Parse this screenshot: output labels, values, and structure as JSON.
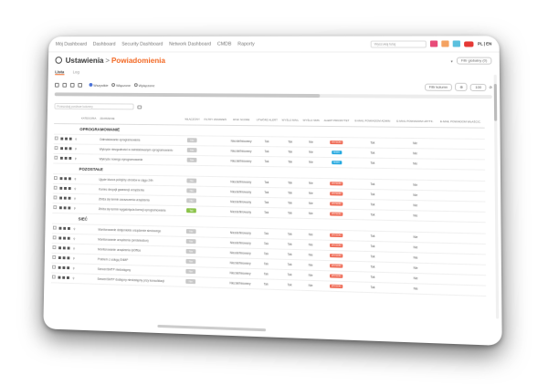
{
  "nav": [
    "Mój Dashboard",
    "Dashboard",
    "Security Dashboard",
    "Network Dashboard",
    "CMDB",
    "Raporty"
  ],
  "search_placeholder": "Wyszukaj tutaj",
  "lang": "PL | EN",
  "title": {
    "part1": "Ustawienia",
    "separator": ">",
    "part2": "Powiadomienia"
  },
  "filter_global": "Filtr globalny (0)",
  "tabs": [
    {
      "label": "Lista",
      "active": true
    },
    {
      "label": "Log",
      "active": false
    }
  ],
  "radios": [
    {
      "label": "Wszystkie",
      "on": true
    },
    {
      "label": "Włączone",
      "on": false
    },
    {
      "label": "Wyłączone",
      "on": false
    }
  ],
  "toolbar_right": {
    "button": "Filtr kolumn",
    "page_size": "100"
  },
  "filter_placeholder": "Przeszukaj poniższe kolumny",
  "columns": [
    "KATEGORIA",
    "ZDARZENIE",
    "WŁĄCZONY",
    "FILTRY ZDARZEŃ",
    "RISK SCORE",
    "UTWÓRZ ALERT",
    "WYŚLIJ MAIL",
    "WYŚLIJ SMS",
    "ALERT PRIORYTET",
    "E-MAIL POWIADOM ADMIN",
    "E-MAIL POWIADOM UŻYTK.",
    "E-MAIL POWIADOM WŁAŚCIC."
  ],
  "groups": [
    {
      "name": "OPROGRAMOWANIE",
      "rows": [
        {
          "name": "Odinstalowanie oprogramowania",
          "enabled": "Nie",
          "risk": "Niezdefiniowany",
          "alert": "Tak",
          "mail": "Tak",
          "sms": "Nie",
          "prio": "WYSOKI",
          "prio_color": "red",
          "admin": "Tak",
          "user": "Nie"
        },
        {
          "name": "Wykrycie niezgodności w zainstalowanym oprogramowaniu",
          "enabled": "Nie",
          "risk": "Niezdefiniowany",
          "alert": "Tak",
          "mail": "Tak",
          "sms": "Nie",
          "prio": "NISKI",
          "prio_color": "blue",
          "admin": "Tak",
          "user": "Nie"
        },
        {
          "name": "Wykrycie nowego oprogramowania",
          "enabled": "Nie",
          "risk": "Niezdefiniowany",
          "alert": "Tak",
          "mail": "Tak",
          "sms": "Nie",
          "prio": "NISKI",
          "prio_color": "blue",
          "admin": "Tak",
          "user": "Nie"
        }
      ]
    },
    {
      "name": "POZOSTAŁE",
      "rows": [
        {
          "name": "Ujęcie klucza policji/zy obrotów w ciągu 24h",
          "enabled": "Nie",
          "risk": "Niezdefiniowany",
          "alert": "Tak",
          "mail": "Tak",
          "sms": "Nie",
          "prio": "WYSOKI",
          "prio_color": "red",
          "admin": "Tak",
          "user": "Nie"
        },
        {
          "name": "Koniec decyzjii gwarancji urządzenia",
          "enabled": "Nie",
          "risk": "Niezdefiniowany",
          "alert": "Tak",
          "mail": "Tak",
          "sms": "Nie",
          "prio": "WYSOKI",
          "prio_color": "red",
          "admin": "Tak",
          "user": "Nie"
        },
        {
          "name": "Zbliża się termin zaoszczenia urządzenia",
          "enabled": "Nie",
          "risk": "Niezdefiniowany",
          "alert": "Tak",
          "mail": "Tak",
          "sms": "Nie",
          "prio": "WYSOKI",
          "prio_color": "red",
          "admin": "Tak",
          "user": "Nie"
        },
        {
          "name": "Zbliża się termin wygaśnięcia licencji oprogramowania",
          "enabled": "Tak",
          "risk": "Niezdefiniowany",
          "alert": "Tak",
          "mail": "Tak",
          "sms": "Nie",
          "prio": "WYSOKI",
          "prio_color": "red",
          "admin": "Tak",
          "user": "Nie"
        }
      ]
    },
    {
      "name": "SIEĆ",
      "rows": [
        {
          "name": "Monitorowanie dziejeniekte urządzenie sieciowego",
          "enabled": "Nie",
          "risk": "Niezdefiniowany",
          "alert": "Tak",
          "mail": "Tak",
          "sms": "Nie",
          "prio": "WYSOKI",
          "prio_color": "red",
          "admin": "Tak",
          "user": "Nie"
        },
        {
          "name": "Monitorowanie urządzenia (on/detection)",
          "enabled": "Nie",
          "risk": "Niezdefiniowany",
          "alert": "Tak",
          "mail": "Tak",
          "sms": "Nie",
          "prio": "WYSOKI",
          "prio_color": "red",
          "admin": "Tak",
          "user": "Nie"
        },
        {
          "name": "Monitorowanie urządzenia IpOffice",
          "enabled": "Nie",
          "risk": "Niezdefiniowany",
          "alert": "Tak",
          "mail": "Tak",
          "sms": "Nie",
          "prio": "WYSOKI",
          "prio_color": "red",
          "admin": "Tak",
          "user": "Nie"
        },
        {
          "name": "Problem z usługą SNMP",
          "enabled": "Nie",
          "risk": "Niezdefiniowany",
          "alert": "Tak",
          "mail": "Tak",
          "sms": "Nie",
          "prio": "WYSOKI",
          "prio_color": "red",
          "admin": "Tak",
          "user": "Nie"
        },
        {
          "name": "Serwer/SMTP niedostępny",
          "enabled": "Nie",
          "risk": "Niezdefiniowany",
          "alert": "Tak",
          "mail": "Tak",
          "sms": "Nie",
          "prio": "WYSOKI",
          "prio_color": "red",
          "admin": "Tak",
          "user": "Nie"
        },
        {
          "name": "Serwer/SMTP dostępny niedostępny przy konsolidacji",
          "enabled": "Nie",
          "risk": "Niezdefiniowany",
          "alert": "Tak",
          "mail": "Tak",
          "sms": "Nie",
          "prio": "WYSOKI",
          "prio_color": "red",
          "admin": "Tak",
          "user": "Nie"
        }
      ]
    }
  ],
  "colors": {
    "accent": "#f26722",
    "danger": "#ef6c57",
    "info": "#26a9e0"
  }
}
